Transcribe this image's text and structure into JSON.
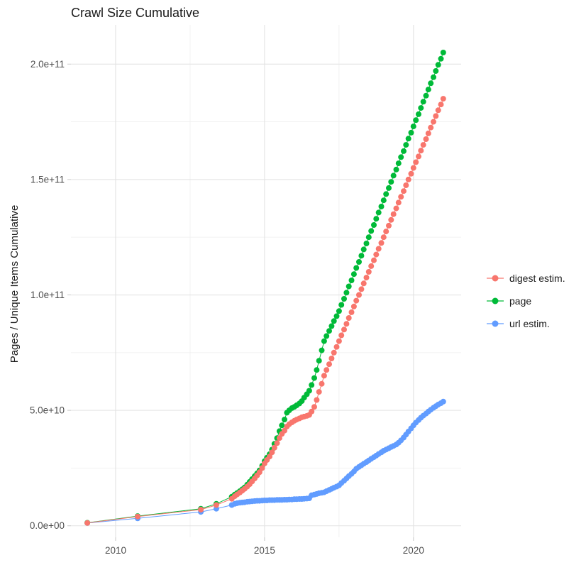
{
  "chart_data": {
    "type": "line",
    "title": "Crawl Size Cumulative",
    "xlabel": "",
    "ylabel": "Pages / Unique Items Cumulative",
    "legend_position": "right",
    "grid": true,
    "y_unit_multiplier": 10000000000,
    "xlim": [
      2008.5,
      2021.6
    ],
    "ylim_e10": [
      -0.5,
      21.7
    ],
    "x_ticks": [
      {
        "value": 2010,
        "label": "2010"
      },
      {
        "value": 2015,
        "label": "2015"
      },
      {
        "value": 2020,
        "label": "2020"
      }
    ],
    "x_minor_ticks": [
      2012.5,
      2017.5
    ],
    "y_ticks": [
      {
        "value": 0,
        "label": "0.0e+00"
      },
      {
        "value": 5,
        "label": "5.0e+10"
      },
      {
        "value": 10,
        "label": "1.0e+11"
      },
      {
        "value": 15,
        "label": "1.5e+11"
      },
      {
        "value": 20,
        "label": "2.0e+11"
      }
    ],
    "y_minor_ticks": [
      2.5,
      7.5,
      12.5,
      17.5
    ],
    "series": [
      {
        "name": "digest estim.",
        "color": "#F8766D",
        "points": [
          [
            2009.05,
            0.12
          ],
          [
            2010.74,
            0.4
          ],
          [
            2012.86,
            0.7
          ],
          [
            2013.38,
            0.9
          ],
          [
            2013.9,
            1.17
          ],
          [
            2014,
            1.28
          ],
          [
            2014.08,
            1.36
          ],
          [
            2014.17,
            1.44
          ],
          [
            2014.25,
            1.52
          ],
          [
            2014.33,
            1.6
          ],
          [
            2014.42,
            1.7
          ],
          [
            2014.5,
            1.8
          ],
          [
            2014.58,
            1.92
          ],
          [
            2014.67,
            2.05
          ],
          [
            2014.75,
            2.18
          ],
          [
            2014.83,
            2.32
          ],
          [
            2014.92,
            2.5
          ],
          [
            2015,
            2.7
          ],
          [
            2015.08,
            2.85
          ],
          [
            2015.17,
            3.0
          ],
          [
            2015.25,
            3.18
          ],
          [
            2015.33,
            3.38
          ],
          [
            2015.42,
            3.58
          ],
          [
            2015.5,
            3.8
          ],
          [
            2015.58,
            3.98
          ],
          [
            2015.67,
            4.12
          ],
          [
            2015.75,
            4.3
          ],
          [
            2015.83,
            4.4
          ],
          [
            2015.92,
            4.48
          ],
          [
            2016,
            4.55
          ],
          [
            2016.08,
            4.6
          ],
          [
            2016.17,
            4.65
          ],
          [
            2016.25,
            4.7
          ],
          [
            2016.33,
            4.73
          ],
          [
            2016.42,
            4.76
          ],
          [
            2016.5,
            4.8
          ],
          [
            2016.58,
            4.95
          ],
          [
            2016.67,
            5.15
          ],
          [
            2016.75,
            5.45
          ],
          [
            2016.83,
            5.8
          ],
          [
            2016.92,
            6.15
          ],
          [
            2017,
            6.5
          ],
          [
            2017.08,
            6.75
          ],
          [
            2017.17,
            7.0
          ],
          [
            2017.25,
            7.25
          ],
          [
            2017.33,
            7.5
          ],
          [
            2017.42,
            7.75
          ],
          [
            2017.5,
            8.0
          ],
          [
            2017.58,
            8.25
          ],
          [
            2017.67,
            8.5
          ],
          [
            2017.75,
            8.75
          ],
          [
            2017.83,
            9.0
          ],
          [
            2017.92,
            9.25
          ],
          [
            2018,
            9.5
          ],
          [
            2018.08,
            9.75
          ],
          [
            2018.17,
            10.0
          ],
          [
            2018.25,
            10.25
          ],
          [
            2018.33,
            10.5
          ],
          [
            2018.42,
            10.75
          ],
          [
            2018.5,
            11.0
          ],
          [
            2018.58,
            11.25
          ],
          [
            2018.67,
            11.5
          ],
          [
            2018.75,
            11.75
          ],
          [
            2018.83,
            12.0
          ],
          [
            2018.92,
            12.25
          ],
          [
            2019,
            12.5
          ],
          [
            2019.08,
            12.75
          ],
          [
            2019.17,
            13.0
          ],
          [
            2019.25,
            13.25
          ],
          [
            2019.33,
            13.5
          ],
          [
            2019.42,
            13.75
          ],
          [
            2019.5,
            14.0
          ],
          [
            2019.58,
            14.25
          ],
          [
            2019.67,
            14.5
          ],
          [
            2019.75,
            14.75
          ],
          [
            2019.83,
            15.0
          ],
          [
            2019.92,
            15.25
          ],
          [
            2020,
            15.5
          ],
          [
            2020.08,
            15.75
          ],
          [
            2020.17,
            16.0
          ],
          [
            2020.25,
            16.25
          ],
          [
            2020.33,
            16.5
          ],
          [
            2020.42,
            16.75
          ],
          [
            2020.5,
            17.0
          ],
          [
            2020.58,
            17.25
          ],
          [
            2020.67,
            17.5
          ],
          [
            2020.75,
            17.75
          ],
          [
            2020.83,
            18.0
          ],
          [
            2020.92,
            18.25
          ],
          [
            2021,
            18.5
          ]
        ]
      },
      {
        "name": "page",
        "color": "#00BA38",
        "points": [
          [
            2009.05,
            0.13
          ],
          [
            2010.74,
            0.42
          ],
          [
            2012.86,
            0.74
          ],
          [
            2013.38,
            0.95
          ],
          [
            2013.9,
            1.26
          ],
          [
            2014,
            1.35
          ],
          [
            2014.08,
            1.42
          ],
          [
            2014.17,
            1.5
          ],
          [
            2014.25,
            1.58
          ],
          [
            2014.33,
            1.66
          ],
          [
            2014.42,
            1.78
          ],
          [
            2014.5,
            1.9
          ],
          [
            2014.58,
            2.02
          ],
          [
            2014.67,
            2.15
          ],
          [
            2014.75,
            2.27
          ],
          [
            2014.83,
            2.4
          ],
          [
            2014.92,
            2.6
          ],
          [
            2015,
            2.8
          ],
          [
            2015.08,
            2.95
          ],
          [
            2015.17,
            3.1
          ],
          [
            2015.25,
            3.3
          ],
          [
            2015.33,
            3.55
          ],
          [
            2015.42,
            3.8
          ],
          [
            2015.5,
            4.1
          ],
          [
            2015.58,
            4.35
          ],
          [
            2015.67,
            4.6
          ],
          [
            2015.75,
            4.9
          ],
          [
            2015.83,
            5.0
          ],
          [
            2015.92,
            5.1
          ],
          [
            2016,
            5.15
          ],
          [
            2016.08,
            5.22
          ],
          [
            2016.17,
            5.3
          ],
          [
            2016.25,
            5.4
          ],
          [
            2016.33,
            5.55
          ],
          [
            2016.42,
            5.7
          ],
          [
            2016.5,
            5.85
          ],
          [
            2016.58,
            6.1
          ],
          [
            2016.67,
            6.4
          ],
          [
            2016.75,
            6.75
          ],
          [
            2016.83,
            7.15
          ],
          [
            2016.92,
            7.6
          ],
          [
            2017,
            8.0
          ],
          [
            2017.08,
            8.22
          ],
          [
            2017.17,
            8.44
          ],
          [
            2017.25,
            8.65
          ],
          [
            2017.33,
            8.87
          ],
          [
            2017.42,
            9.08
          ],
          [
            2017.5,
            9.3
          ],
          [
            2017.58,
            9.57
          ],
          [
            2017.67,
            9.83
          ],
          [
            2017.75,
            10.1
          ],
          [
            2017.83,
            10.37
          ],
          [
            2017.92,
            10.63
          ],
          [
            2018,
            10.9
          ],
          [
            2018.08,
            11.17
          ],
          [
            2018.17,
            11.43
          ],
          [
            2018.25,
            11.7
          ],
          [
            2018.33,
            11.97
          ],
          [
            2018.42,
            12.23
          ],
          [
            2018.5,
            12.5
          ],
          [
            2018.58,
            12.77
          ],
          [
            2018.67,
            13.03
          ],
          [
            2018.75,
            13.3
          ],
          [
            2018.83,
            13.57
          ],
          [
            2018.92,
            13.83
          ],
          [
            2019,
            14.1
          ],
          [
            2019.08,
            14.37
          ],
          [
            2019.17,
            14.63
          ],
          [
            2019.25,
            14.9
          ],
          [
            2019.33,
            15.17
          ],
          [
            2019.42,
            15.43
          ],
          [
            2019.5,
            15.7
          ],
          [
            2019.58,
            15.97
          ],
          [
            2019.67,
            16.23
          ],
          [
            2019.75,
            16.5
          ],
          [
            2019.83,
            16.77
          ],
          [
            2019.92,
            17.03
          ],
          [
            2020,
            17.3
          ],
          [
            2020.08,
            17.57
          ],
          [
            2020.17,
            17.83
          ],
          [
            2020.25,
            18.1
          ],
          [
            2020.33,
            18.37
          ],
          [
            2020.42,
            18.63
          ],
          [
            2020.5,
            18.9
          ],
          [
            2020.58,
            19.17
          ],
          [
            2020.67,
            19.43
          ],
          [
            2020.75,
            19.7
          ],
          [
            2020.83,
            19.97
          ],
          [
            2020.92,
            20.23
          ],
          [
            2021,
            20.5
          ]
        ]
      },
      {
        "name": "url estim.",
        "color": "#619CFF",
        "points": [
          [
            2009.05,
            0.12
          ],
          [
            2010.74,
            0.32
          ],
          [
            2012.86,
            0.6
          ],
          [
            2013.38,
            0.74
          ],
          [
            2013.9,
            0.9
          ],
          [
            2014,
            0.95
          ],
          [
            2014.08,
            0.98
          ],
          [
            2014.17,
            1.0
          ],
          [
            2014.25,
            1.01
          ],
          [
            2014.33,
            1.02
          ],
          [
            2014.42,
            1.04
          ],
          [
            2014.5,
            1.05
          ],
          [
            2014.58,
            1.06
          ],
          [
            2014.67,
            1.07
          ],
          [
            2014.75,
            1.08
          ],
          [
            2014.83,
            1.08
          ],
          [
            2014.92,
            1.09
          ],
          [
            2015,
            1.1
          ],
          [
            2015.08,
            1.1
          ],
          [
            2015.17,
            1.11
          ],
          [
            2015.25,
            1.11
          ],
          [
            2015.33,
            1.11
          ],
          [
            2015.42,
            1.12
          ],
          [
            2015.5,
            1.12
          ],
          [
            2015.58,
            1.12
          ],
          [
            2015.67,
            1.13
          ],
          [
            2015.75,
            1.13
          ],
          [
            2015.83,
            1.14
          ],
          [
            2015.92,
            1.14
          ],
          [
            2016,
            1.15
          ],
          [
            2016.08,
            1.15
          ],
          [
            2016.17,
            1.16
          ],
          [
            2016.25,
            1.16
          ],
          [
            2016.33,
            1.17
          ],
          [
            2016.42,
            1.18
          ],
          [
            2016.5,
            1.19
          ],
          [
            2016.58,
            1.32
          ],
          [
            2016.67,
            1.35
          ],
          [
            2016.75,
            1.38
          ],
          [
            2016.83,
            1.41
          ],
          [
            2016.92,
            1.43
          ],
          [
            2017,
            1.45
          ],
          [
            2017.08,
            1.5
          ],
          [
            2017.17,
            1.55
          ],
          [
            2017.25,
            1.6
          ],
          [
            2017.33,
            1.65
          ],
          [
            2017.42,
            1.7
          ],
          [
            2017.5,
            1.75
          ],
          [
            2017.58,
            1.85
          ],
          [
            2017.67,
            1.95
          ],
          [
            2017.75,
            2.05
          ],
          [
            2017.83,
            2.15
          ],
          [
            2017.92,
            2.25
          ],
          [
            2018,
            2.35
          ],
          [
            2018.08,
            2.47
          ],
          [
            2018.17,
            2.55
          ],
          [
            2018.25,
            2.62
          ],
          [
            2018.33,
            2.69
          ],
          [
            2018.42,
            2.76
          ],
          [
            2018.5,
            2.83
          ],
          [
            2018.58,
            2.9
          ],
          [
            2018.67,
            2.97
          ],
          [
            2018.75,
            3.04
          ],
          [
            2018.83,
            3.11
          ],
          [
            2018.92,
            3.18
          ],
          [
            2019,
            3.25
          ],
          [
            2019.08,
            3.3
          ],
          [
            2019.17,
            3.36
          ],
          [
            2019.25,
            3.41
          ],
          [
            2019.33,
            3.46
          ],
          [
            2019.42,
            3.52
          ],
          [
            2019.5,
            3.6
          ],
          [
            2019.58,
            3.7
          ],
          [
            2019.67,
            3.82
          ],
          [
            2019.75,
            3.95
          ],
          [
            2019.83,
            4.08
          ],
          [
            2019.92,
            4.22
          ],
          [
            2020,
            4.35
          ],
          [
            2020.08,
            4.47
          ],
          [
            2020.17,
            4.58
          ],
          [
            2020.25,
            4.68
          ],
          [
            2020.33,
            4.77
          ],
          [
            2020.42,
            4.86
          ],
          [
            2020.5,
            4.95
          ],
          [
            2020.58,
            5.03
          ],
          [
            2020.67,
            5.11
          ],
          [
            2020.75,
            5.18
          ],
          [
            2020.83,
            5.25
          ],
          [
            2020.92,
            5.31
          ],
          [
            2021,
            5.38
          ]
        ]
      }
    ]
  },
  "colors": {
    "background": "#ffffff",
    "grid_major": "#e3e3e3",
    "grid_minor": "#f0f0f0",
    "tick": "#c9c9c9",
    "axis_text": "#4d4d4d",
    "text": "#1a1a1a"
  }
}
